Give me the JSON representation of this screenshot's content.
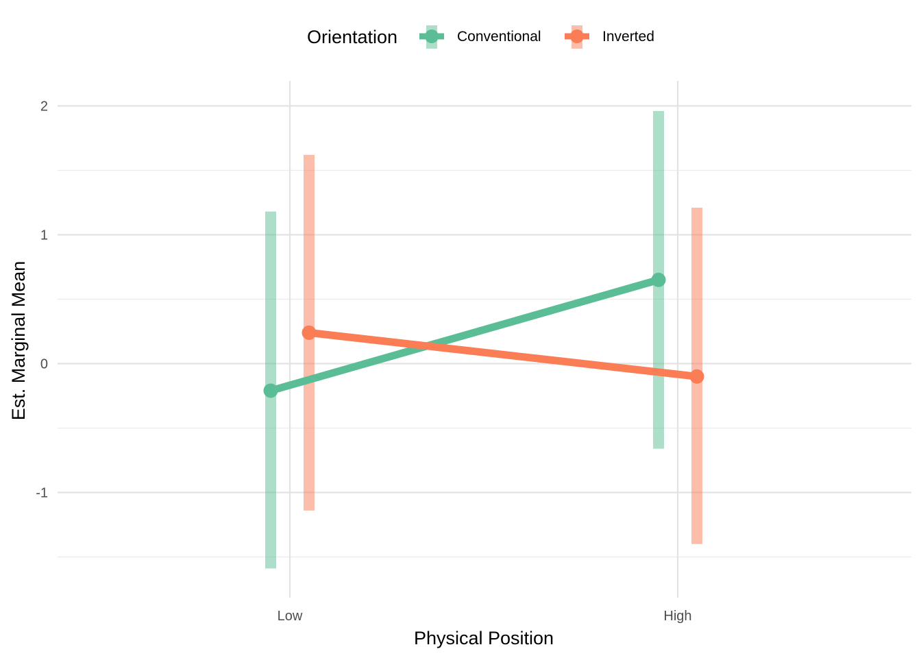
{
  "chart_data": {
    "type": "line",
    "xlabel": "Physical Position",
    "ylabel": "Est. Marginal Mean",
    "categories": [
      "Low",
      "High"
    ],
    "ylim": [
      -1.52,
      2.18
    ],
    "y_ticks": [
      "-1",
      "0",
      "1",
      "2"
    ],
    "grid": true,
    "legend": {
      "title": "Orientation",
      "position": "top"
    },
    "series": [
      {
        "name": "Conventional",
        "color": "#5BBD96",
        "values": [
          -0.21,
          0.65
        ],
        "lower": [
          -1.59,
          -0.66
        ],
        "upper": [
          1.18,
          1.96
        ]
      },
      {
        "name": "Inverted",
        "color": "#FA7D56",
        "values": [
          0.24,
          -0.1
        ],
        "lower": [
          -1.14,
          -1.4
        ],
        "upper": [
          1.62,
          1.21
        ]
      }
    ]
  }
}
